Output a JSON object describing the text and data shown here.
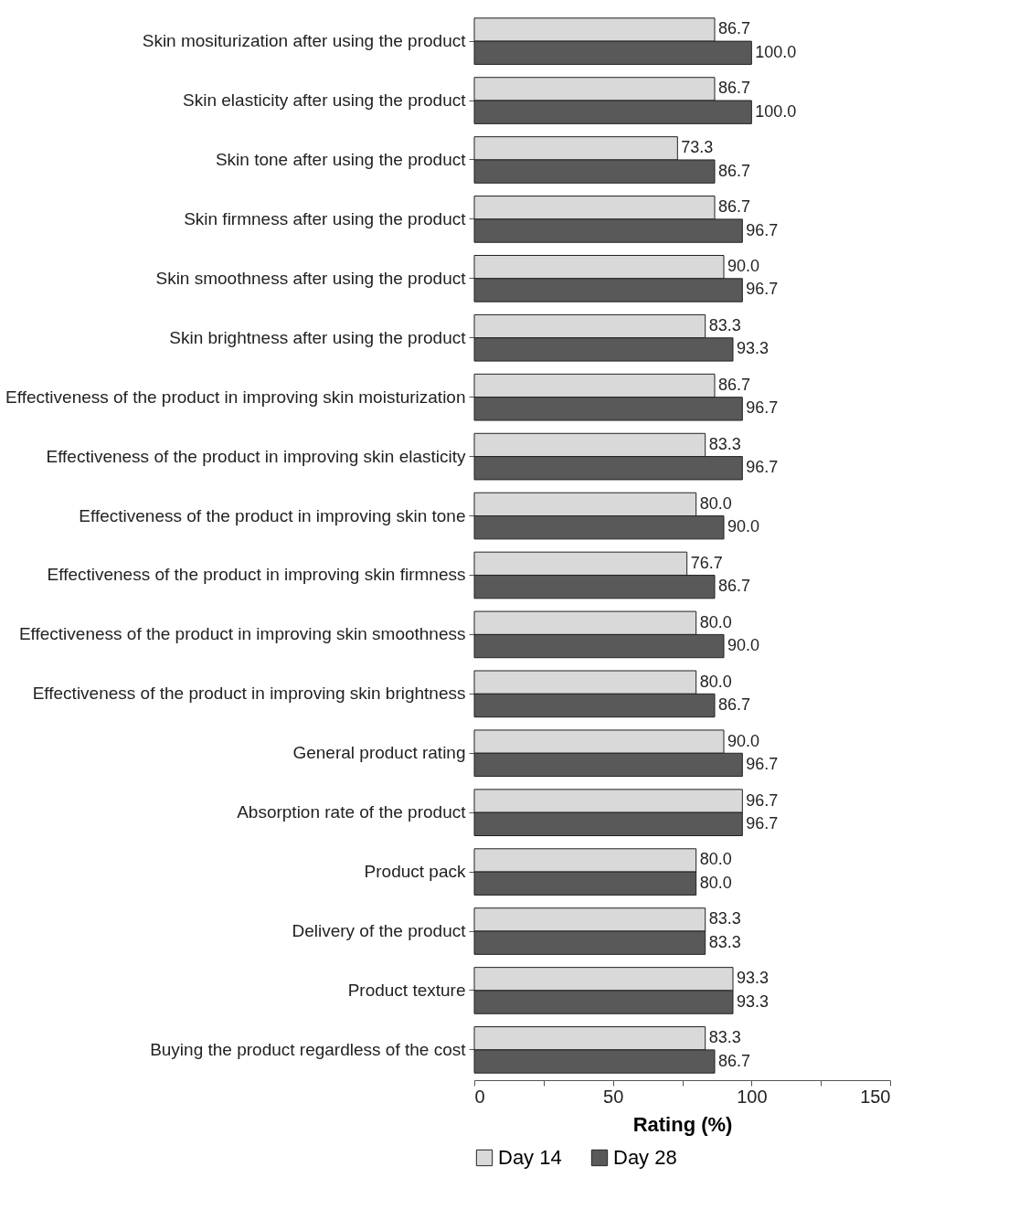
{
  "chart_data": {
    "type": "bar",
    "orientation": "horizontal",
    "xlabel": "Rating (%)",
    "categories": [
      "Skin mositurization after using the product",
      "Skin elasticity after using the product",
      "Skin tone after using the product",
      "Skin firmness after using the product",
      "Skin smoothness after using the product",
      "Skin brightness after using the product",
      "Effectiveness of the product in improving skin moisturization",
      "Effectiveness of the product in improving skin elasticity",
      "Effectiveness of the product in improving skin tone",
      "Effectiveness of the product in improving skin firmness",
      "Effectiveness of the product in improving skin smoothness",
      "Effectiveness of the product in improving skin brightness",
      "General product rating",
      "Absorption rate of the product",
      "Product pack",
      "Delivery of the product",
      "Product texture",
      "Buying the product regardless of the cost"
    ],
    "series": [
      {
        "name": "Day 14",
        "color": "#d9d9d9",
        "values": [
          86.7,
          86.7,
          73.3,
          86.7,
          90.0,
          83.3,
          86.7,
          83.3,
          80.0,
          76.7,
          80.0,
          80.0,
          90.0,
          96.7,
          80.0,
          83.3,
          93.3,
          83.3
        ],
        "value_labels": [
          "86.7",
          "86.7",
          "73.3",
          "86.7",
          "90.0",
          "83.3",
          "86.7",
          "83.3",
          "80.0",
          "76.7",
          "80.0",
          "80.0",
          "90.0",
          "96.7",
          "80.0",
          "83.3",
          "93.3",
          "83.3"
        ]
      },
      {
        "name": "Day 28",
        "color": "#595959",
        "values": [
          100.0,
          100.0,
          86.7,
          96.7,
          96.7,
          93.3,
          96.7,
          96.7,
          90.0,
          86.7,
          90.0,
          86.7,
          96.7,
          96.7,
          80.0,
          83.3,
          93.3,
          86.7
        ],
        "value_labels": [
          "100.0",
          "100.0",
          "86.7",
          "96.7",
          "96.7",
          "93.3",
          "96.7",
          "96.7",
          "90.0",
          "86.7",
          "90.0",
          "86.7",
          "96.7",
          "96.7",
          "80.0",
          "83.3",
          "93.3",
          "86.7"
        ]
      }
    ],
    "xlim": [
      0,
      150
    ],
    "xticks": [
      0,
      {
        "value": 25,
        "label": null
      },
      50,
      {
        "value": 75,
        "label": null
      },
      100,
      {
        "value": 125,
        "label": null
      },
      150
    ],
    "grid": false,
    "legend": "bottom"
  }
}
